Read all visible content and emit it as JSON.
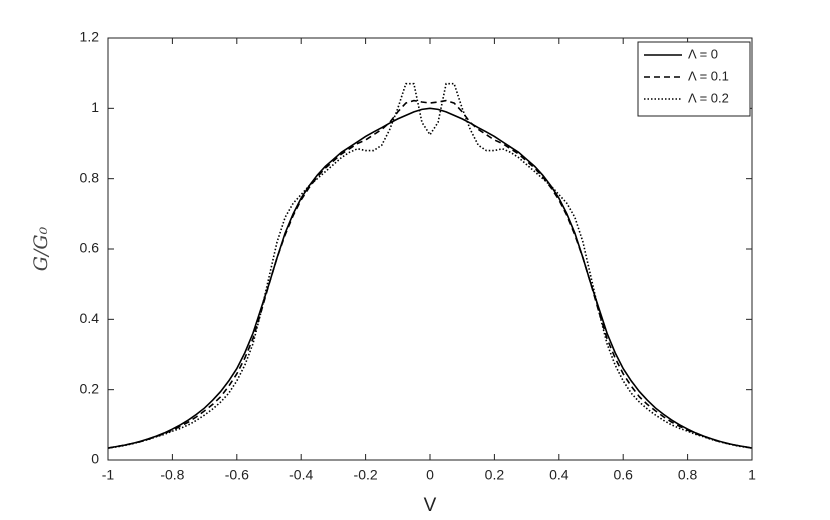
{
  "chart_data": {
    "type": "line",
    "xlabel": "V",
    "ylabel": "G/G₀",
    "x": [
      -1,
      -0.975,
      -0.95,
      -0.925,
      -0.9,
      -0.875,
      -0.85,
      -0.825,
      -0.8,
      -0.775,
      -0.75,
      -0.725,
      -0.7,
      -0.675,
      -0.65,
      -0.625,
      -0.6,
      -0.575,
      -0.55,
      -0.525,
      -0.5,
      -0.475,
      -0.45,
      -0.425,
      -0.4,
      -0.375,
      -0.35,
      -0.325,
      -0.3,
      -0.275,
      -0.25,
      -0.225,
      -0.2,
      -0.175,
      -0.15,
      -0.125,
      -0.1,
      -0.075,
      -0.05,
      -0.025,
      0,
      0.025,
      0.05,
      0.075,
      0.1,
      0.125,
      0.15,
      0.175,
      0.2,
      0.225,
      0.25,
      0.275,
      0.3,
      0.325,
      0.35,
      0.375,
      0.4,
      0.425,
      0.45,
      0.475,
      0.5,
      0.525,
      0.55,
      0.575,
      0.6,
      0.625,
      0.65,
      0.675,
      0.7,
      0.725,
      0.75,
      0.775,
      0.8,
      0.825,
      0.85,
      0.875,
      0.9,
      0.925,
      0.95,
      0.975,
      1
    ],
    "series": [
      {
        "name": "Λ = 0",
        "color": "#000000",
        "style": "solid",
        "values": [
          0.034,
          0.038,
          0.042,
          0.047,
          0.053,
          0.06,
          0.068,
          0.077,
          0.088,
          0.1,
          0.114,
          0.13,
          0.148,
          0.17,
          0.195,
          0.225,
          0.26,
          0.305,
          0.36,
          0.43,
          0.5,
          0.575,
          0.645,
          0.7,
          0.745,
          0.78,
          0.81,
          0.835,
          0.855,
          0.875,
          0.89,
          0.905,
          0.92,
          0.933,
          0.945,
          0.958,
          0.97,
          0.98,
          0.99,
          0.997,
          1.0,
          0.997,
          0.99,
          0.98,
          0.97,
          0.958,
          0.945,
          0.933,
          0.92,
          0.905,
          0.89,
          0.875,
          0.855,
          0.835,
          0.81,
          0.78,
          0.745,
          0.7,
          0.645,
          0.575,
          0.5,
          0.43,
          0.36,
          0.305,
          0.26,
          0.225,
          0.195,
          0.17,
          0.148,
          0.13,
          0.114,
          0.1,
          0.088,
          0.077,
          0.068,
          0.06,
          0.053,
          0.047,
          0.042,
          0.038,
          0.034
        ]
      },
      {
        "name": "Λ = 0.1",
        "color": "#000000",
        "style": "dashed",
        "values": [
          0.034,
          0.038,
          0.042,
          0.047,
          0.052,
          0.059,
          0.067,
          0.075,
          0.085,
          0.096,
          0.108,
          0.123,
          0.14,
          0.158,
          0.18,
          0.21,
          0.245,
          0.29,
          0.345,
          0.42,
          0.5,
          0.575,
          0.64,
          0.695,
          0.74,
          0.775,
          0.805,
          0.83,
          0.85,
          0.87,
          0.885,
          0.9,
          0.91,
          0.925,
          0.94,
          0.96,
          0.99,
          1.015,
          1.022,
          1.018,
          1.015,
          1.018,
          1.022,
          1.015,
          0.99,
          0.96,
          0.94,
          0.925,
          0.91,
          0.9,
          0.885,
          0.87,
          0.85,
          0.83,
          0.805,
          0.775,
          0.74,
          0.695,
          0.64,
          0.575,
          0.5,
          0.42,
          0.345,
          0.29,
          0.245,
          0.21,
          0.18,
          0.158,
          0.14,
          0.123,
          0.108,
          0.096,
          0.085,
          0.075,
          0.067,
          0.059,
          0.052,
          0.047,
          0.042,
          0.038,
          0.034
        ]
      },
      {
        "name": "Λ = 0.2",
        "color": "#000000",
        "style": "dotted",
        "values": [
          0.034,
          0.037,
          0.041,
          0.046,
          0.052,
          0.058,
          0.066,
          0.073,
          0.082,
          0.09,
          0.1,
          0.113,
          0.128,
          0.145,
          0.165,
          0.19,
          0.225,
          0.27,
          0.33,
          0.42,
          0.52,
          0.62,
          0.69,
          0.73,
          0.755,
          0.78,
          0.8,
          0.82,
          0.84,
          0.86,
          0.875,
          0.885,
          0.88,
          0.88,
          0.895,
          0.94,
          1.0,
          1.07,
          1.07,
          0.96,
          0.925,
          0.96,
          1.07,
          1.07,
          1.0,
          0.94,
          0.895,
          0.88,
          0.88,
          0.885,
          0.875,
          0.86,
          0.84,
          0.82,
          0.8,
          0.78,
          0.755,
          0.73,
          0.69,
          0.62,
          0.52,
          0.42,
          0.33,
          0.27,
          0.225,
          0.19,
          0.165,
          0.145,
          0.128,
          0.113,
          0.1,
          0.09,
          0.082,
          0.073,
          0.066,
          0.058,
          0.052,
          0.046,
          0.041,
          0.037,
          0.034
        ]
      }
    ],
    "xlim": [
      -1,
      1
    ],
    "xticks": [
      -1,
      -0.8,
      -0.6,
      -0.4,
      -0.2,
      0,
      0.2,
      0.4,
      0.6,
      0.8,
      1
    ],
    "ylim": [
      0,
      1.2
    ],
    "yticks": [
      0,
      0.2,
      0.4,
      0.6,
      0.8,
      1,
      1.2
    ],
    "grid": false,
    "legend": "top-right"
  }
}
